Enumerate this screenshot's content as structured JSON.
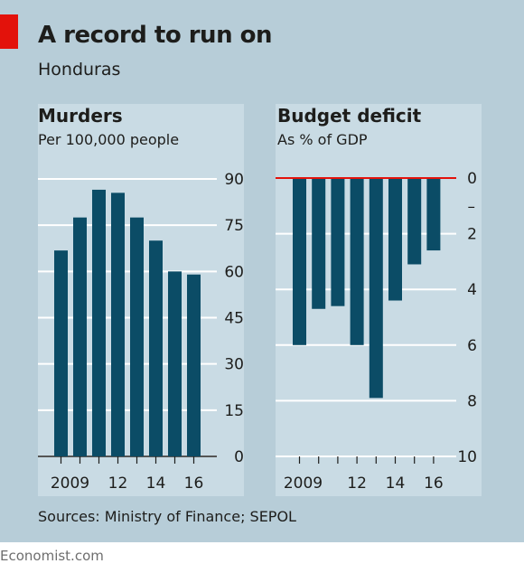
{
  "header": {
    "title": "A record to run on",
    "subtitle": "Honduras"
  },
  "colors": {
    "background": "#b7cdd8",
    "plot_area": "#c9dbe4",
    "bar": "#0b4c66",
    "accent_red": "#e3120b",
    "gridline": "#ffffff"
  },
  "chart_data": [
    {
      "type": "bar",
      "title": "Murders",
      "subtitle": "Per 100,000 people",
      "categories": [
        "2009",
        "2010",
        "2011",
        "2012",
        "2013",
        "2014",
        "2015",
        "2016"
      ],
      "x_tick_labels": [
        "2009",
        "",
        "",
        "12",
        "",
        "14",
        "",
        "16"
      ],
      "values": [
        66.8,
        77.5,
        86.5,
        85.5,
        77.5,
        70.0,
        60.0,
        59.0
      ],
      "ylim": [
        0,
        90
      ],
      "y_ticks": [
        0,
        15,
        30,
        45,
        60,
        75,
        90
      ],
      "y_tick_labels": [
        "0",
        "15",
        "30",
        "45",
        "60",
        "75",
        "90"
      ],
      "y_axis_side": "right",
      "grid": true
    },
    {
      "type": "bar",
      "title": "Budget deficit",
      "subtitle": "As % of GDP",
      "categories": [
        "2009",
        "2010",
        "2011",
        "2012",
        "2013",
        "2014",
        "2015",
        "2016"
      ],
      "x_tick_labels": [
        "2009",
        "",
        "",
        "12",
        "",
        "14",
        "",
        "16"
      ],
      "values": [
        6.0,
        4.7,
        4.6,
        6.0,
        7.9,
        4.4,
        3.1,
        2.6
      ],
      "ylim": [
        0,
        10
      ],
      "inverted": true,
      "y_ticks": [
        0,
        2,
        4,
        6,
        8,
        10
      ],
      "y_tick_labels": [
        "0",
        "2",
        "4",
        "6",
        "8",
        "10"
      ],
      "y_minus_label": "–",
      "y_axis_side": "right",
      "grid": true
    }
  ],
  "footer": {
    "sources": "Sources: Ministry of Finance; SEPOL",
    "brand": "Economist.com"
  }
}
